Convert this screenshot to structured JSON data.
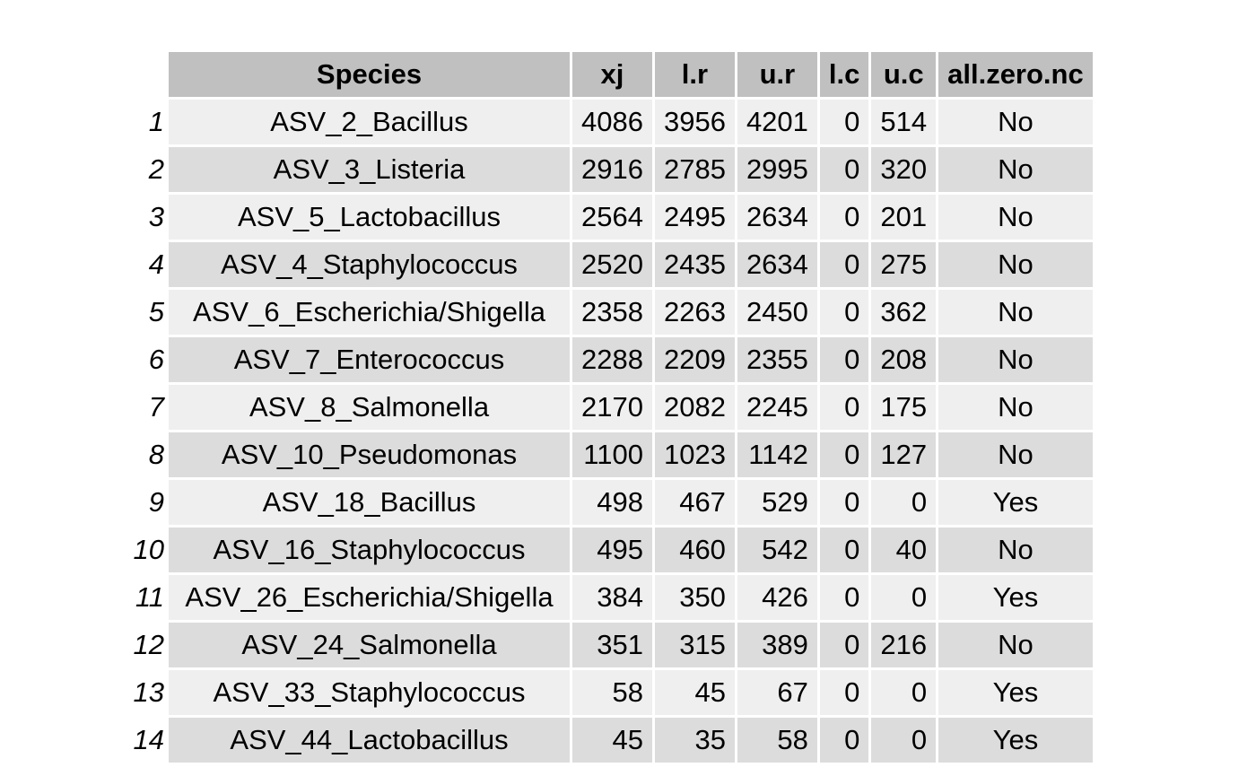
{
  "table": {
    "headers": [
      "Species",
      "xj",
      "l.r",
      "u.r",
      "l.c",
      "u.c",
      "all.zero.nc"
    ],
    "rows": [
      {
        "id": "1",
        "cells": [
          "ASV_2_Bacillus",
          "4086",
          "3956",
          "4201",
          "0",
          "514",
          "No"
        ]
      },
      {
        "id": "2",
        "cells": [
          "ASV_3_Listeria",
          "2916",
          "2785",
          "2995",
          "0",
          "320",
          "No"
        ]
      },
      {
        "id": "3",
        "cells": [
          "ASV_5_Lactobacillus",
          "2564",
          "2495",
          "2634",
          "0",
          "201",
          "No"
        ]
      },
      {
        "id": "4",
        "cells": [
          "ASV_4_Staphylococcus",
          "2520",
          "2435",
          "2634",
          "0",
          "275",
          "No"
        ]
      },
      {
        "id": "5",
        "cells": [
          "ASV_6_Escherichia/Shigella",
          "2358",
          "2263",
          "2450",
          "0",
          "362",
          "No"
        ]
      },
      {
        "id": "6",
        "cells": [
          "ASV_7_Enterococcus",
          "2288",
          "2209",
          "2355",
          "0",
          "208",
          "No"
        ]
      },
      {
        "id": "7",
        "cells": [
          "ASV_8_Salmonella",
          "2170",
          "2082",
          "2245",
          "0",
          "175",
          "No"
        ]
      },
      {
        "id": "8",
        "cells": [
          "ASV_10_Pseudomonas",
          "1100",
          "1023",
          "1142",
          "0",
          "127",
          "No"
        ]
      },
      {
        "id": "9",
        "cells": [
          "ASV_18_Bacillus",
          "498",
          "467",
          "529",
          "0",
          "0",
          "Yes"
        ]
      },
      {
        "id": "10",
        "cells": [
          "ASV_16_Staphylococcus",
          "495",
          "460",
          "542",
          "0",
          "40",
          "No"
        ]
      },
      {
        "id": "11",
        "cells": [
          "ASV_26_Escherichia/Shigella",
          "384",
          "350",
          "426",
          "0",
          "0",
          "Yes"
        ]
      },
      {
        "id": "12",
        "cells": [
          "ASV_24_Salmonella",
          "351",
          "315",
          "389",
          "0",
          "216",
          "No"
        ]
      },
      {
        "id": "13",
        "cells": [
          "ASV_33_Staphylococcus",
          "58",
          "45",
          "67",
          "0",
          "0",
          "Yes"
        ]
      },
      {
        "id": "14",
        "cells": [
          "ASV_44_Lactobacillus",
          "45",
          "35",
          "58",
          "0",
          "0",
          "Yes"
        ]
      }
    ]
  },
  "colors": {
    "header_bg": "#c0c0c0",
    "row_light": "#efefef",
    "row_dark": "#dcdcdc"
  }
}
